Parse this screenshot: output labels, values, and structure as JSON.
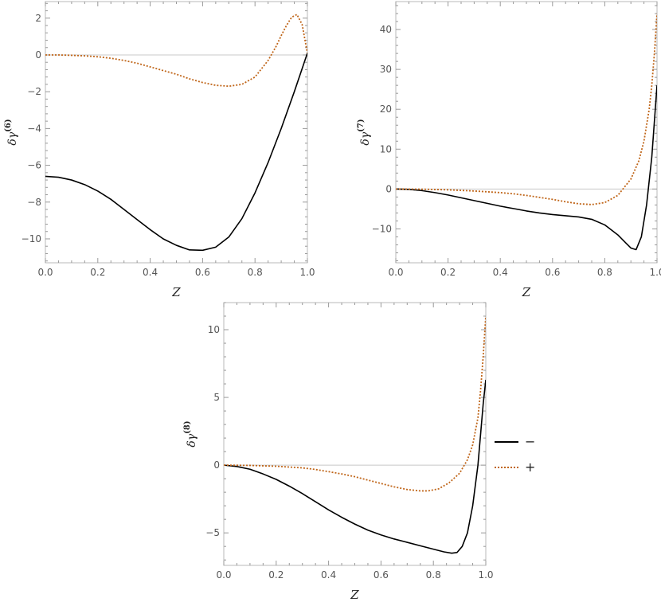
{
  "legend": {
    "entries": [
      {
        "label": "−",
        "style": "solid",
        "color": "#000000"
      },
      {
        "label": "+",
        "style": "dotted",
        "color": "#c0661a"
      }
    ]
  },
  "chart_data": [
    {
      "type": "line",
      "title": "",
      "xlabel": "Z",
      "ylabel_main": "δγ",
      "ylabel_sup": "(6)",
      "xlim": [
        0,
        1
      ],
      "ylim": [
        -11.3,
        2.9
      ],
      "xticks": [
        0.0,
        0.2,
        0.4,
        0.6,
        0.8,
        1.0
      ],
      "xtick_labels": [
        "0.0",
        "0.2",
        "0.4",
        "0.6",
        "0.8",
        "1.0"
      ],
      "yticks": [
        -10,
        -8,
        -6,
        -4,
        -2,
        0,
        2
      ],
      "ytick_labels": [
        "−10",
        "−8",
        "−6",
        "−4",
        "−2",
        "0",
        "2"
      ],
      "series": [
        {
          "name": "−",
          "style": "solid",
          "color": "#000000",
          "x": [
            0,
            0.05,
            0.1,
            0.15,
            0.2,
            0.25,
            0.3,
            0.35,
            0.4,
            0.45,
            0.5,
            0.55,
            0.6,
            0.65,
            0.7,
            0.75,
            0.8,
            0.85,
            0.9,
            0.95,
            1.0
          ],
          "y": [
            -6.6,
            -6.65,
            -6.8,
            -7.05,
            -7.4,
            -7.85,
            -8.4,
            -8.95,
            -9.5,
            -10.0,
            -10.35,
            -10.6,
            -10.62,
            -10.45,
            -9.9,
            -8.9,
            -7.5,
            -5.85,
            -4.0,
            -2.0,
            0.1
          ]
        },
        {
          "name": "+",
          "style": "dotted",
          "color": "#c0661a",
          "x": [
            0,
            0.05,
            0.1,
            0.15,
            0.2,
            0.25,
            0.3,
            0.35,
            0.4,
            0.45,
            0.5,
            0.55,
            0.6,
            0.65,
            0.7,
            0.75,
            0.8,
            0.85,
            0.88,
            0.9,
            0.92,
            0.94,
            0.96,
            0.98,
            1.0
          ],
          "y": [
            0,
            0,
            -0.02,
            -0.05,
            -0.1,
            -0.18,
            -0.3,
            -0.45,
            -0.65,
            -0.85,
            -1.05,
            -1.3,
            -1.5,
            -1.65,
            -1.7,
            -1.6,
            -1.2,
            -0.3,
            0.45,
            1.05,
            1.6,
            2.05,
            2.2,
            1.65,
            0.1
          ]
        }
      ]
    },
    {
      "type": "line",
      "title": "",
      "xlabel": "Z",
      "ylabel_main": "δγ",
      "ylabel_sup": "(7)",
      "xlim": [
        0,
        1
      ],
      "ylim": [
        -18.5,
        47
      ],
      "xticks": [
        0.0,
        0.2,
        0.4,
        0.6,
        0.8,
        1.0
      ],
      "xtick_labels": [
        "0.0",
        "0.2",
        "0.4",
        "0.6",
        "0.8",
        "1.0"
      ],
      "yticks": [
        -10,
        0,
        10,
        20,
        30,
        40
      ],
      "ytick_labels": [
        "−10",
        "0",
        "10",
        "20",
        "30",
        "40"
      ],
      "series": [
        {
          "name": "−",
          "style": "solid",
          "color": "#000000",
          "x": [
            0,
            0.05,
            0.1,
            0.15,
            0.2,
            0.25,
            0.3,
            0.35,
            0.4,
            0.45,
            0.5,
            0.55,
            0.6,
            0.65,
            0.7,
            0.75,
            0.8,
            0.85,
            0.88,
            0.9,
            0.92,
            0.94,
            0.96,
            0.98,
            1.0
          ],
          "y": [
            0,
            -0.1,
            -0.4,
            -0.9,
            -1.5,
            -2.2,
            -2.9,
            -3.6,
            -4.3,
            -4.9,
            -5.5,
            -6.0,
            -6.4,
            -6.7,
            -7.0,
            -7.6,
            -9.0,
            -11.5,
            -13.5,
            -14.8,
            -15.2,
            -12.0,
            -4.0,
            8.0,
            26.0
          ]
        },
        {
          "name": "+",
          "style": "dotted",
          "color": "#c0661a",
          "x": [
            0,
            0.1,
            0.2,
            0.3,
            0.4,
            0.45,
            0.5,
            0.55,
            0.6,
            0.65,
            0.7,
            0.75,
            0.8,
            0.85,
            0.9,
            0.93,
            0.95,
            0.97,
            0.98,
            0.99,
            1.0
          ],
          "y": [
            0,
            -0.05,
            -0.2,
            -0.5,
            -0.9,
            -1.2,
            -1.6,
            -2.1,
            -2.6,
            -3.2,
            -3.7,
            -3.9,
            -3.4,
            -1.6,
            2.5,
            7.0,
            12.0,
            20.0,
            26.0,
            34.0,
            44.0
          ]
        }
      ]
    },
    {
      "type": "line",
      "title": "",
      "xlabel": "Z",
      "ylabel_main": "δγ",
      "ylabel_sup": "(8)",
      "xlim": [
        0,
        1
      ],
      "ylim": [
        -7.4,
        12.0
      ],
      "xticks": [
        0.0,
        0.2,
        0.4,
        0.6,
        0.8,
        1.0
      ],
      "xtick_labels": [
        "0.0",
        "0.2",
        "0.4",
        "0.6",
        "0.8",
        "1.0"
      ],
      "yticks": [
        -5,
        0,
        5,
        10
      ],
      "ytick_labels": [
        "−5",
        "0",
        "5",
        "10"
      ],
      "series": [
        {
          "name": "−",
          "style": "solid",
          "color": "#000000",
          "x": [
            0,
            0.05,
            0.1,
            0.15,
            0.2,
            0.25,
            0.3,
            0.35,
            0.4,
            0.45,
            0.5,
            0.55,
            0.6,
            0.65,
            0.7,
            0.75,
            0.8,
            0.84,
            0.87,
            0.89,
            0.91,
            0.93,
            0.95,
            0.97,
            0.99,
            1.0
          ],
          "y": [
            0,
            -0.1,
            -0.3,
            -0.65,
            -1.05,
            -1.55,
            -2.1,
            -2.7,
            -3.3,
            -3.85,
            -4.35,
            -4.8,
            -5.15,
            -5.45,
            -5.7,
            -5.95,
            -6.2,
            -6.4,
            -6.5,
            -6.45,
            -6.0,
            -5.0,
            -3.0,
            0.0,
            4.5,
            6.3
          ]
        },
        {
          "name": "+",
          "style": "dotted",
          "color": "#c0661a",
          "x": [
            0,
            0.1,
            0.2,
            0.3,
            0.35,
            0.4,
            0.45,
            0.5,
            0.55,
            0.6,
            0.65,
            0.7,
            0.75,
            0.78,
            0.82,
            0.86,
            0.9,
            0.93,
            0.95,
            0.97,
            0.98,
            0.99,
            1.0
          ],
          "y": [
            0,
            -0.02,
            -0.08,
            -0.2,
            -0.32,
            -0.48,
            -0.65,
            -0.85,
            -1.1,
            -1.35,
            -1.6,
            -1.8,
            -1.9,
            -1.9,
            -1.75,
            -1.3,
            -0.6,
            0.4,
            1.5,
            3.5,
            5.5,
            8.0,
            11.0
          ]
        }
      ]
    }
  ]
}
